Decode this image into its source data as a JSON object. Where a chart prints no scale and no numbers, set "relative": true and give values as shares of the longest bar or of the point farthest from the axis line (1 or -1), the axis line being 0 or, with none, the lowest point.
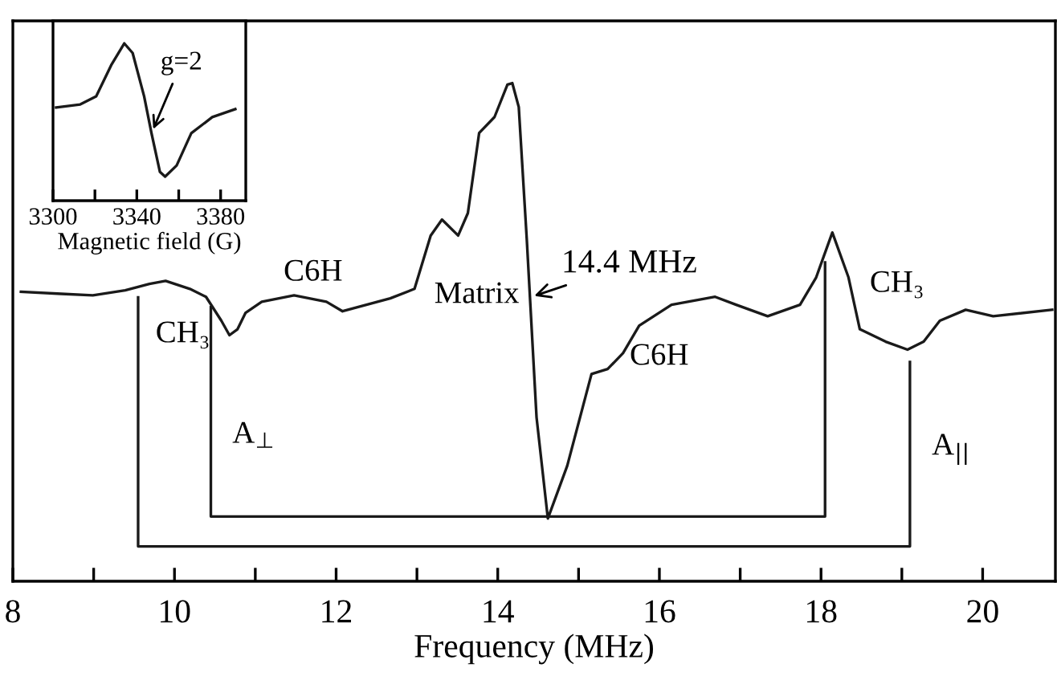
{
  "chart_data": [
    {
      "type": "line",
      "relative": true,
      "xlabel": "Frequency (MHz)",
      "x": [
        8.1,
        8.6,
        8.99,
        9.39,
        9.69,
        9.89,
        10.19,
        10.39,
        10.58,
        10.68,
        10.78,
        10.88,
        11.08,
        11.48,
        11.88,
        12.08,
        12.67,
        12.97,
        13.17,
        13.31,
        13.51,
        13.63,
        13.77,
        13.96,
        14.12,
        14.18,
        14.26,
        14.36,
        14.48,
        14.62,
        14.86,
        15.16,
        15.36,
        15.55,
        15.75,
        16.15,
        16.69,
        16.95,
        17.34,
        17.74,
        17.94,
        18.14,
        18.34,
        18.48,
        18.8,
        19.07,
        19.27,
        19.47,
        19.79,
        20.13,
        20.86
      ],
      "series": [
        {
          "color": "#1a1a1a",
          "x": [
            9.55,
            9.55,
            19.1,
            19.1
          ],
          "values": [
            0.57,
            0.07,
            0.07,
            0.44
          ]
        },
        {
          "color": "#1a1a1a",
          "x": [
            10.45,
            10.45,
            18.05,
            18.05
          ],
          "values": [
            0.55,
            0.13,
            0.13,
            0.64
          ]
        },
        {
          "color": "#1a1a1a",
          "values": [
            0.581,
            0.577,
            0.574,
            0.584,
            0.597,
            0.603,
            0.587,
            0.571,
            0.523,
            0.494,
            0.506,
            0.539,
            0.561,
            0.574,
            0.561,
            0.542,
            0.568,
            0.587,
            0.694,
            0.726,
            0.694,
            0.739,
            0.9,
            0.932,
            0.997,
            1.0,
            0.952,
            0.684,
            0.329,
            0.126,
            0.232,
            0.416,
            0.426,
            0.458,
            0.513,
            0.555,
            0.571,
            0.555,
            0.532,
            0.555,
            0.61,
            0.7,
            0.61,
            0.506,
            0.481,
            0.465,
            0.481,
            0.523,
            0.545,
            0.532,
            0.545
          ]
        }
      ],
      "xlim": [
        8,
        20.9
      ],
      "xticks": [
        8,
        {
          "value": 9,
          "label": null
        },
        10,
        {
          "value": 11,
          "label": null
        },
        12,
        {
          "value": 13,
          "label": null
        },
        14,
        {
          "value": 15,
          "label": null
        },
        16,
        {
          "value": 17,
          "label": null
        },
        18,
        {
          "value": 19,
          "label": null
        },
        20
      ],
      "tick_labels": "x",
      "grid": false,
      "legend": false,
      "marker": "none",
      "line_style": "solid",
      "annotations": [
        "CH₃",
        "C6H",
        "Matrix",
        {
          "text": "14.4 MHz",
          "x": 14.4,
          "y": 0.57
        },
        "C6H",
        "CH₃",
        "A$_{⊥}$",
        "A$_{||}$"
      ]
    },
    {
      "type": "line",
      "relative": true,
      "xlabel": "Magnetic field (G)",
      "x": [
        3301.5,
        3313,
        3320.6,
        3328,
        3334,
        3338,
        3343.5,
        3347,
        3351,
        3353.5,
        3359,
        3366,
        3376,
        3387
      ],
      "series": [
        {
          "color": "#1a1a1a",
          "values": [
            0.592,
            0.612,
            0.663,
            0.867,
            1.0,
            0.939,
            0.663,
            0.429,
            0.184,
            0.153,
            0.224,
            0.429,
            0.531,
            0.582
          ]
        }
      ],
      "xlim": [
        3300,
        3392
      ],
      "xticks": [
        3300,
        {
          "value": 3320,
          "label": null
        },
        3340,
        {
          "value": 3360,
          "label": null
        },
        3380
      ],
      "tick_labels": "x",
      "grid": false,
      "legend": false,
      "marker": "none",
      "line_style": "solid",
      "annotations": [
        {
          "text": "g=2",
          "x": 3347,
          "y": 0.429
        }
      ]
    }
  ]
}
